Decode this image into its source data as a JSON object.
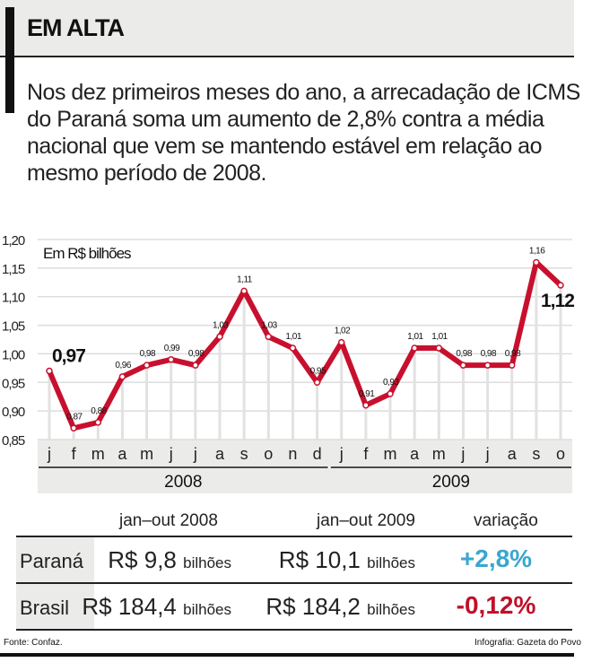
{
  "header": {
    "title": "EM ALTA"
  },
  "lead": "Nos dez primeiros meses do ano, a arrecadação de ICMS do Paraná soma um aumento de 2,8% contra a média nacional que vem se mantendo estável em relação ao mesmo período de 2008.",
  "chart_data": {
    "type": "line",
    "title": "",
    "unit_label": "Em R$ bilhões",
    "ylim": [
      0.85,
      1.2
    ],
    "yticks": [
      "1,20",
      "1,15",
      "1,10",
      "1,05",
      "1,00",
      "0,95",
      "0,90",
      "0,85"
    ],
    "grid": true,
    "categories": [
      "j",
      "f",
      "m",
      "a",
      "m",
      "j",
      "j",
      "a",
      "s",
      "o",
      "n",
      "d",
      "j",
      "f",
      "m",
      "a",
      "m",
      "j",
      "j",
      "a",
      "s",
      "o"
    ],
    "years": [
      {
        "label": "2008",
        "months": 12
      },
      {
        "label": "2009",
        "months": 10
      }
    ],
    "values": [
      0.97,
      0.87,
      0.88,
      0.96,
      0.98,
      0.99,
      0.98,
      1.03,
      1.11,
      1.03,
      1.01,
      0.95,
      1.02,
      0.91,
      0.93,
      1.01,
      1.01,
      0.98,
      0.98,
      0.98,
      1.16,
      1.12
    ],
    "labels": [
      "0,97",
      "0,87",
      "0,88",
      "0,96",
      "0,98",
      "0,99",
      "0,98",
      "1,03",
      "1,11",
      "1,03",
      "1,01",
      "0,95",
      "1,02",
      "0,91",
      "0,93",
      "1,01",
      "1,01",
      "0,98",
      "0,98",
      "0,98",
      "1,16",
      "1,12"
    ],
    "line_color": "#c8102e"
  },
  "table": {
    "headers": [
      "jan–out 2008",
      "jan–out 2009",
      "variação"
    ],
    "unit": "bilhões",
    "currency": "R$",
    "rows": [
      {
        "label": "Paraná",
        "v2008": "9,8",
        "v2009": "10,1",
        "variation": "+2,8%",
        "color": "#3aa6d0"
      },
      {
        "label": "Brasil",
        "v2008": "184,4",
        "v2009": "184,2",
        "variation": "-0,12%",
        "color": "#c0102a"
      }
    ]
  },
  "footer": {
    "source": "Fonte: Confaz.",
    "credit": "Infografia: Gazeta do Povo"
  }
}
